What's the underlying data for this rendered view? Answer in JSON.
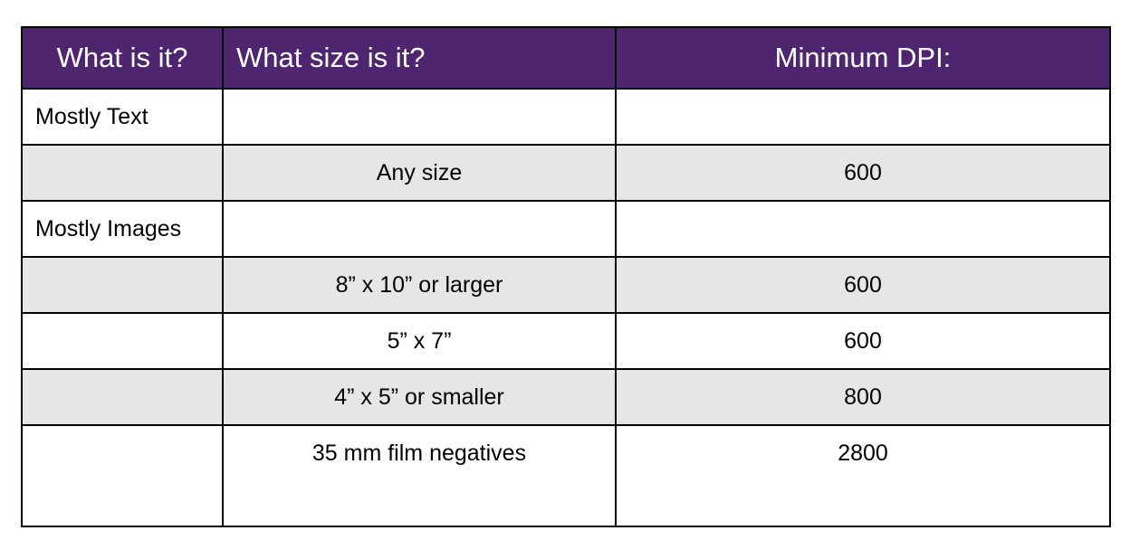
{
  "table": {
    "headers": [
      "What is it?",
      "What size is it?",
      "Minimum DPI:"
    ],
    "rows": [
      {
        "category": "Mostly Text",
        "size": "",
        "dpi": ""
      },
      {
        "category": "",
        "size": "Any size",
        "dpi": "600"
      },
      {
        "category": "Mostly Images",
        "size": "",
        "dpi": ""
      },
      {
        "category": "",
        "size": "8” x 10” or larger",
        "dpi": "600"
      },
      {
        "category": "",
        "size": "5” x 7”",
        "dpi": "600"
      },
      {
        "category": "",
        "size": "4” x 5” or smaller",
        "dpi": "800"
      },
      {
        "category": "",
        "size": "35 mm film negatives",
        "dpi": "2800"
      }
    ]
  },
  "colors": {
    "header_bg": "#4f2570",
    "header_text": "#ffffff",
    "alt_row_bg": "#e6e6e6",
    "border": "#000000"
  }
}
